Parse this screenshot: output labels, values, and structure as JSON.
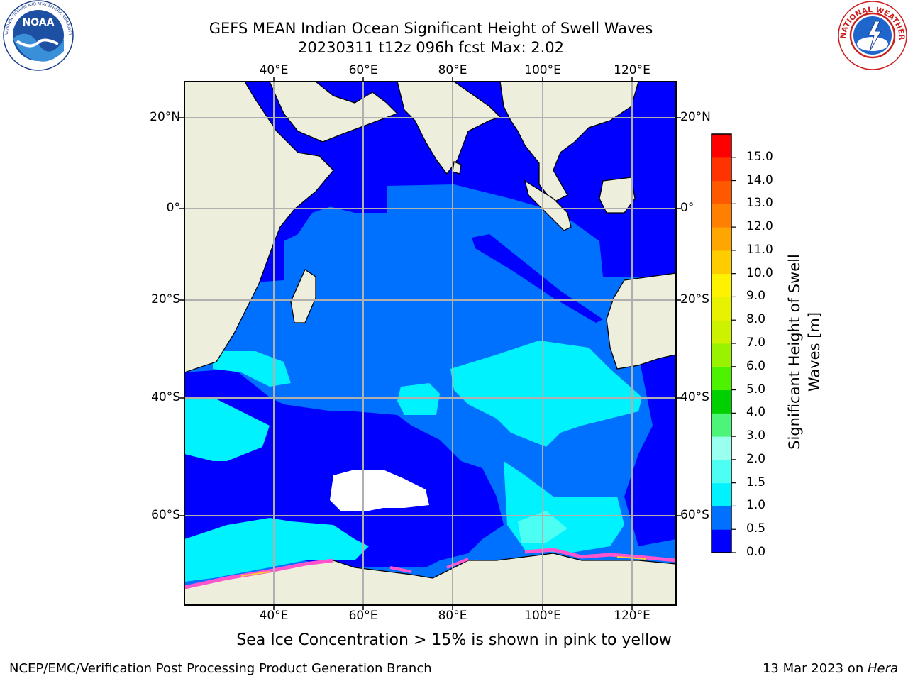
{
  "header": {
    "title_line1": "GEFS MEAN Indian Ocean Significant Height of Swell Waves",
    "title_line2": "20230311 t12z 096h fcst   Max: 2.02"
  },
  "logos": {
    "left": {
      "icon": "noaa-logo",
      "text": "NOAA",
      "ring_text": "NATIONAL OCEANIC AND ATMOSPHERIC ADMINISTRATION · U.S. DEPARTMENT OF COMMERCE"
    },
    "right": {
      "icon": "national-weather-service-logo",
      "ring_text": "NATIONAL WEATHER SERVICE"
    }
  },
  "map": {
    "lon_ticks": [
      "40°E",
      "60°E",
      "80°E",
      "100°E",
      "120°E"
    ],
    "lat_ticks": [
      "20°N",
      "0°",
      "20°S",
      "40°S",
      "60°S"
    ],
    "grid": true,
    "colors": {
      "land": "#eeeedd",
      "ice": "#ff55cc",
      "ice_warm": "#ffcc33",
      "no_data": "#ffffff",
      "grid": "#b0b0b0"
    }
  },
  "colorbar": {
    "label": "Significant Height of Swell Waves [m]",
    "tick_labels": [
      "0.0",
      "0.5",
      "1.0",
      "1.5",
      "2.0",
      "3.0",
      "4.0",
      "5.0",
      "6.0",
      "7.0",
      "8.0",
      "9.0",
      "10.0",
      "11.0",
      "12.0",
      "13.0",
      "14.0",
      "15.0"
    ],
    "bins": [
      {
        "min": 0.0,
        "max": 0.5,
        "color": "#0000ff"
      },
      {
        "min": 0.5,
        "max": 1.0,
        "color": "#0070ff"
      },
      {
        "min": 1.0,
        "max": 1.5,
        "color": "#00f2ff"
      },
      {
        "min": 1.5,
        "max": 2.0,
        "color": "#4cfff2"
      },
      {
        "min": 2.0,
        "max": 3.0,
        "color": "#99ffef"
      },
      {
        "min": 3.0,
        "max": 4.0,
        "color": "#4cf578"
      },
      {
        "min": 4.0,
        "max": 5.0,
        "color": "#00cf00"
      },
      {
        "min": 5.0,
        "max": 6.0,
        "color": "#4cf200"
      },
      {
        "min": 6.0,
        "max": 7.0,
        "color": "#99f200"
      },
      {
        "min": 7.0,
        "max": 8.0,
        "color": "#ccf200"
      },
      {
        "min": 8.0,
        "max": 9.0,
        "color": "#e8f200"
      },
      {
        "min": 9.0,
        "max": 10.0,
        "color": "#fff200"
      },
      {
        "min": 10.0,
        "max": 11.0,
        "color": "#ffcc00"
      },
      {
        "min": 11.0,
        "max": 12.0,
        "color": "#ffa600"
      },
      {
        "min": 12.0,
        "max": 13.0,
        "color": "#ff8000"
      },
      {
        "min": 13.0,
        "max": 14.0,
        "color": "#ff5900"
      },
      {
        "min": 14.0,
        "max": 15.0,
        "color": "#ff3300"
      },
      {
        "min": 15.0,
        "max": 16.0,
        "color": "#ff0000"
      }
    ]
  },
  "sea_ice_note": "Sea Ice Concentration > 15% is shown in pink to yellow",
  "footer": {
    "left": "NCEP/EMC/Verification Post Processing Product Generation Branch",
    "right_date": "13 Mar 2023 on ",
    "right_machine": "Hera"
  }
}
